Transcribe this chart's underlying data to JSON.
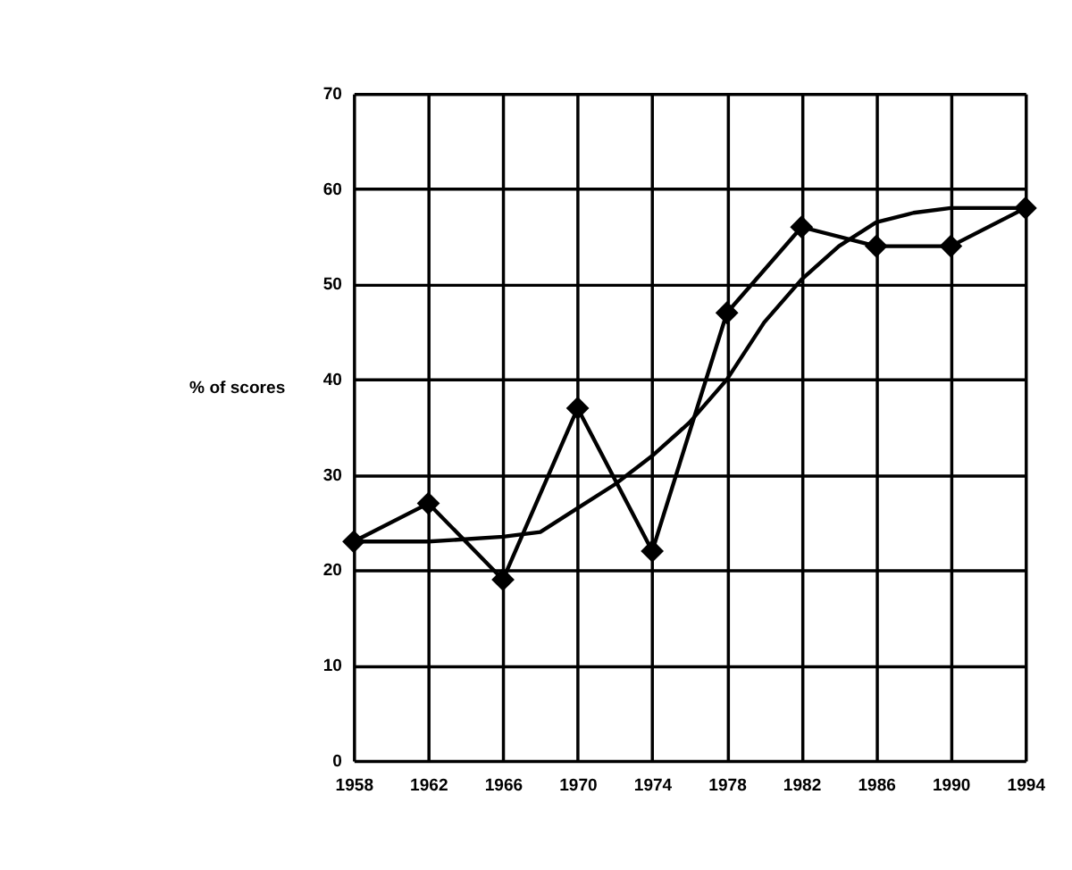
{
  "chart_data": {
    "type": "line",
    "ylabel": "% of scores",
    "x": [
      1958,
      1962,
      1966,
      1970,
      1974,
      1978,
      1982,
      1986,
      1990,
      1994
    ],
    "series": [
      {
        "color": "#000000",
        "marker": "diamond",
        "values": [
          23,
          27,
          19,
          37,
          22,
          47,
          56,
          54,
          54,
          58
        ]
      },
      {
        "color": "#000000",
        "marker": "none",
        "x": [
          1958,
          1962,
          1966,
          1968,
          1970,
          1972,
          1974,
          1976,
          1978,
          1980,
          1982,
          1984,
          1986,
          1988,
          1990,
          1994
        ],
        "values": [
          23,
          23,
          23.5,
          24,
          26.5,
          29,
          32,
          35.5,
          40,
          46,
          50.5,
          54,
          56.5,
          57.5,
          58,
          58
        ]
      }
    ],
    "xlim": [
      1958,
      1994
    ],
    "xticks": [
      1958,
      1962,
      1966,
      1970,
      1974,
      1978,
      1982,
      1986,
      1990,
      1994
    ],
    "ylim": [
      0,
      70
    ],
    "yticks": [
      0,
      10,
      20,
      30,
      40,
      50,
      60,
      70
    ],
    "grid": true,
    "line_style": "solid"
  }
}
